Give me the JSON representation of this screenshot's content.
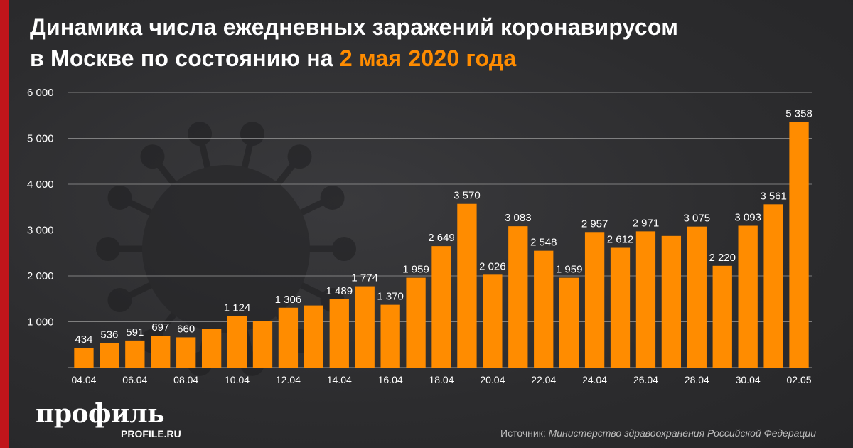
{
  "title": {
    "line1": "Динамика числа ежедневных заражений коронавирусом",
    "line2_prefix": "в Москве по состоянию на ",
    "line2_highlight": "2 мая 2020 года"
  },
  "brand": {
    "name": "профиль",
    "url": "PROFILE.RU"
  },
  "source": {
    "prefix": "Источник: ",
    "text": "Министерство здравоохранения Российской Федерации"
  },
  "colors": {
    "accent": "#ff8c00",
    "side_bar": "#c0151b",
    "background": "#2f2f31",
    "grid": "#9a9a9a",
    "text": "#ffffff"
  },
  "chart_data": {
    "type": "bar",
    "title": "Динамика числа ежедневных заражений коронавирусом в Москве по состоянию на 2 мая 2020 года",
    "xlabel": "",
    "ylabel": "",
    "ylim": [
      0,
      6000
    ],
    "yticks": [
      1000,
      2000,
      3000,
      4000,
      5000,
      6000
    ],
    "ytick_labels": [
      "1 000",
      "2 000",
      "3 000",
      "4 000",
      "5 000",
      "6 000"
    ],
    "categories": [
      "04.04",
      "05.04",
      "06.04",
      "07.04",
      "08.04",
      "09.04",
      "10.04",
      "11.04",
      "12.04",
      "13.04",
      "14.04",
      "15.04",
      "16.04",
      "17.04",
      "18.04",
      "19.04",
      "20.04",
      "21.04",
      "22.04",
      "23.04",
      "24.04",
      "25.04",
      "26.04",
      "27.04",
      "28.04",
      "29.04",
      "30.04",
      "01.05",
      "02.05"
    ],
    "xtick_labels": [
      "04.04",
      "",
      "06.04",
      "",
      "08.04",
      "",
      "10.04",
      "",
      "12.04",
      "",
      "14.04",
      "",
      "16.04",
      "",
      "18.04",
      "",
      "20.04",
      "",
      "22.04",
      "",
      "24.04",
      "",
      "26.04",
      "",
      "28.04",
      "",
      "30.04",
      "",
      "02.05"
    ],
    "values": [
      434,
      536,
      591,
      697,
      660,
      849,
      1124,
      1021,
      1306,
      1355,
      1489,
      1774,
      1370,
      1959,
      2649,
      3570,
      2026,
      3083,
      2548,
      1959,
      2957,
      2612,
      2971,
      2871,
      3075,
      2220,
      3093,
      3561,
      5358
    ],
    "data_labels": [
      "434",
      "536",
      "591",
      "697",
      "660",
      "",
      "1 124",
      "",
      "1 306",
      "",
      "1 489",
      "1 774",
      "1 370",
      "1 959",
      "2 649",
      "3 570",
      "2 026",
      "3 083",
      "2 548",
      "1 959",
      "2 957",
      "2 612",
      "2 971",
      "",
      "3 075",
      "2 220",
      "3 093",
      "3 561",
      "5 358"
    ]
  }
}
